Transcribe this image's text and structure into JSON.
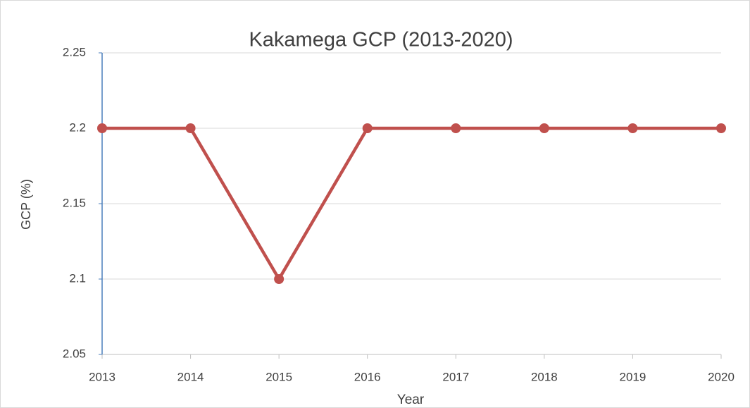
{
  "chart_data": {
    "type": "line",
    "title": "Kakamega GCP (2013-2020)",
    "x_label": "Year",
    "y_label": "GCP (%)",
    "x": [
      2013,
      2014,
      2015,
      2016,
      2017,
      2018,
      2019,
      2020
    ],
    "series": [
      {
        "name": "GCP",
        "color": "#c0504d",
        "values": [
          2.2,
          2.2,
          2.1,
          2.2,
          2.2,
          2.2,
          2.2,
          2.2
        ]
      }
    ],
    "xlim": [
      2013,
      2020
    ],
    "xticks": [
      2013,
      2014,
      2015,
      2016,
      2017,
      2018,
      2019,
      2020
    ],
    "ylim": [
      2.05,
      2.25
    ],
    "yticks": [
      2.05,
      2.1,
      2.15,
      2.2,
      2.25
    ],
    "grid": true
  }
}
